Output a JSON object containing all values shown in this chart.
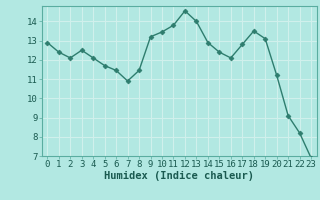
{
  "x": [
    0,
    1,
    2,
    3,
    4,
    5,
    6,
    7,
    8,
    9,
    10,
    11,
    12,
    13,
    14,
    15,
    16,
    17,
    18,
    19,
    20,
    21,
    22,
    23
  ],
  "y": [
    12.9,
    12.4,
    12.1,
    12.5,
    12.1,
    11.7,
    11.45,
    10.9,
    11.45,
    13.2,
    13.45,
    13.8,
    14.55,
    14.0,
    12.9,
    12.4,
    12.1,
    12.8,
    13.5,
    13.1,
    11.2,
    9.1,
    8.2,
    6.9
  ],
  "line_color": "#2e7d6e",
  "marker": "D",
  "marker_size": 2.5,
  "bg_color": "#b2e8e2",
  "grid_color": "#d0f0ec",
  "xlabel": "Humidex (Indice chaleur)",
  "xlim": [
    -0.5,
    23.5
  ],
  "ylim": [
    7,
    14.8
  ],
  "yticks": [
    7,
    8,
    9,
    10,
    11,
    12,
    13,
    14
  ],
  "xticks": [
    0,
    1,
    2,
    3,
    4,
    5,
    6,
    7,
    8,
    9,
    10,
    11,
    12,
    13,
    14,
    15,
    16,
    17,
    18,
    19,
    20,
    21,
    22,
    23
  ],
  "tick_label_fontsize": 6.5,
  "xlabel_fontsize": 7.5,
  "label_color": "#1a5a50",
  "spine_color": "#5aada0"
}
